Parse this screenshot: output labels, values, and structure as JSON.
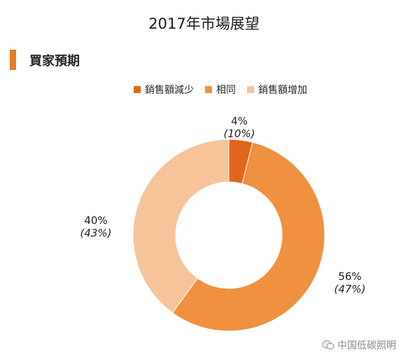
{
  "title": "2017年市場展望",
  "section": {
    "label": "買家預期"
  },
  "watermark": {
    "text": "中国低碳照明",
    "icon": "wechat-icon"
  },
  "colors": {
    "accent": "#e87b25"
  },
  "chart_data": {
    "type": "pie",
    "title": "2017年市場展望",
    "donut": true,
    "legend_position": "top",
    "slices": [
      {
        "label": "銷售額減少",
        "value": 4,
        "value_label": "4%",
        "prior_label": "(10%)",
        "color": "#e2661b"
      },
      {
        "label": "相同",
        "value": 56,
        "value_label": "56%",
        "prior_label": "(47%)",
        "color": "#ef913f"
      },
      {
        "label": "銷售額增加",
        "value": 40,
        "value_label": "40%",
        "prior_label": "(43%)",
        "color": "#f7c49a"
      }
    ]
  }
}
